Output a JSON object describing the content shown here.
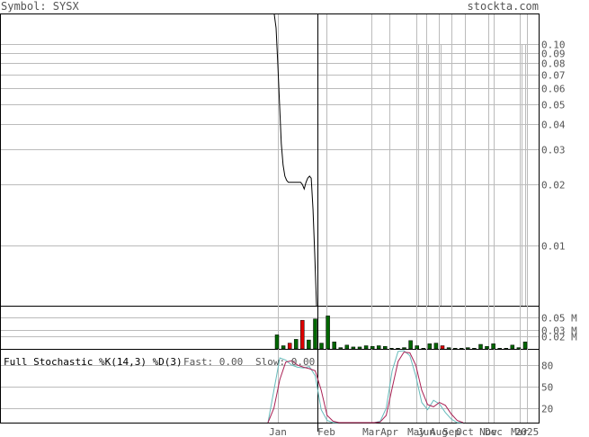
{
  "header": {
    "symbol_text": "Symbol: SYSX",
    "brand": "stockta.com"
  },
  "stoch_header": {
    "title": "Full Stochastic %K(14,3) %D(3)",
    "fast_label": "Fast: 0.00",
    "slow_label": "Slow: 0.00"
  },
  "colors": {
    "fast": "#66bbbb",
    "slow": "#aa2255",
    "vol_up": "#006600",
    "vol_down": "#dd0000",
    "grid": "#bbbbbb"
  },
  "chart_data": [
    {
      "type": "line",
      "scale": "log",
      "ylim": [
        0.005,
        0.14
      ],
      "y_ticks": [
        0.01,
        0.02,
        0.03,
        0.04,
        0.05,
        0.06,
        0.07,
        0.08,
        0.09,
        0.1
      ],
      "y_tick_labels": [
        "0.01",
        "0.02",
        "0.03",
        "0.04",
        "0.05",
        "0.06",
        "0.07",
        "0.08",
        "0.09",
        "0.10"
      ],
      "x_labels": [
        "Jan",
        "Feb",
        "Mar",
        "Apr",
        "May",
        "Jun",
        "Aug",
        "Sep",
        "Oct",
        "Nov",
        "Dec",
        "Mar",
        "2025"
      ],
      "series": [
        {
          "values": [
            0.14,
            0.12,
            0.08,
            0.05,
            0.032,
            0.025,
            0.022,
            0.021,
            0.0205,
            0.0205,
            0.0205,
            0.0205,
            0.0205,
            0.0205,
            0.0205,
            0.0205,
            0.02,
            0.019,
            0.0205,
            0.0215,
            0.022,
            0.0215,
            0.015,
            0.009,
            0.005
          ]
        }
      ]
    },
    {
      "type": "bar",
      "unit": "M",
      "ylim": [
        0,
        0.065
      ],
      "y_ticks": [
        0.02,
        0.03,
        0.05
      ],
      "y_tick_labels": [
        "0.02 M",
        "0.03 M",
        "0.05 M"
      ],
      "values": [
        0.022,
        0.005,
        0.009,
        0.015,
        0.045,
        0.014,
        0.047,
        0.009,
        0.052,
        0.011,
        0.002,
        0.006,
        0.003,
        0.003,
        0.005,
        0.004,
        0.005,
        0.004,
        0.001,
        0.001,
        0.002,
        0.013,
        0.005,
        0.001,
        0.008,
        0.009,
        0.005,
        0.002,
        0.001,
        0.001,
        0.002,
        0.001,
        0.007,
        0.004,
        0.008,
        0.001,
        0.001,
        0.006,
        0.002,
        0.011
      ],
      "direction": [
        "up",
        "up",
        "down",
        "up",
        "down",
        "up",
        "up",
        "up",
        "up",
        "up",
        "up",
        "up",
        "up",
        "up",
        "up",
        "up",
        "up",
        "up",
        "up",
        "up",
        "up",
        "up",
        "up",
        "up",
        "up",
        "up",
        "down",
        "up",
        "up",
        "up",
        "up",
        "up",
        "up",
        "up",
        "up",
        "up",
        "up",
        "up",
        "up",
        "up"
      ]
    },
    {
      "type": "line",
      "title": "Full Stochastic %K(14,3) %D(3)",
      "ylim": [
        0,
        100
      ],
      "y_ticks": [
        20,
        50,
        80
      ],
      "y_tick_labels": [
        "20",
        "50",
        "80"
      ],
      "series": [
        {
          "name": "Fast",
          "values": [
            0,
            45,
            90,
            87,
            80,
            77,
            76,
            78,
            65,
            18,
            3,
            0,
            0,
            0,
            0,
            0,
            0,
            0,
            0,
            2,
            20,
            72,
            99,
            100,
            93,
            65,
            28,
            18,
            31,
            26,
            14,
            5,
            0,
            0
          ]
        },
        {
          "name": "Slow",
          "values": [
            0,
            20,
            60,
            84,
            86,
            80,
            77,
            75,
            72,
            45,
            10,
            2,
            0,
            0,
            0,
            0,
            0,
            0,
            0,
            1,
            10,
            48,
            85,
            98,
            97,
            80,
            45,
            25,
            22,
            28,
            24,
            12,
            3,
            0
          ]
        }
      ]
    }
  ]
}
